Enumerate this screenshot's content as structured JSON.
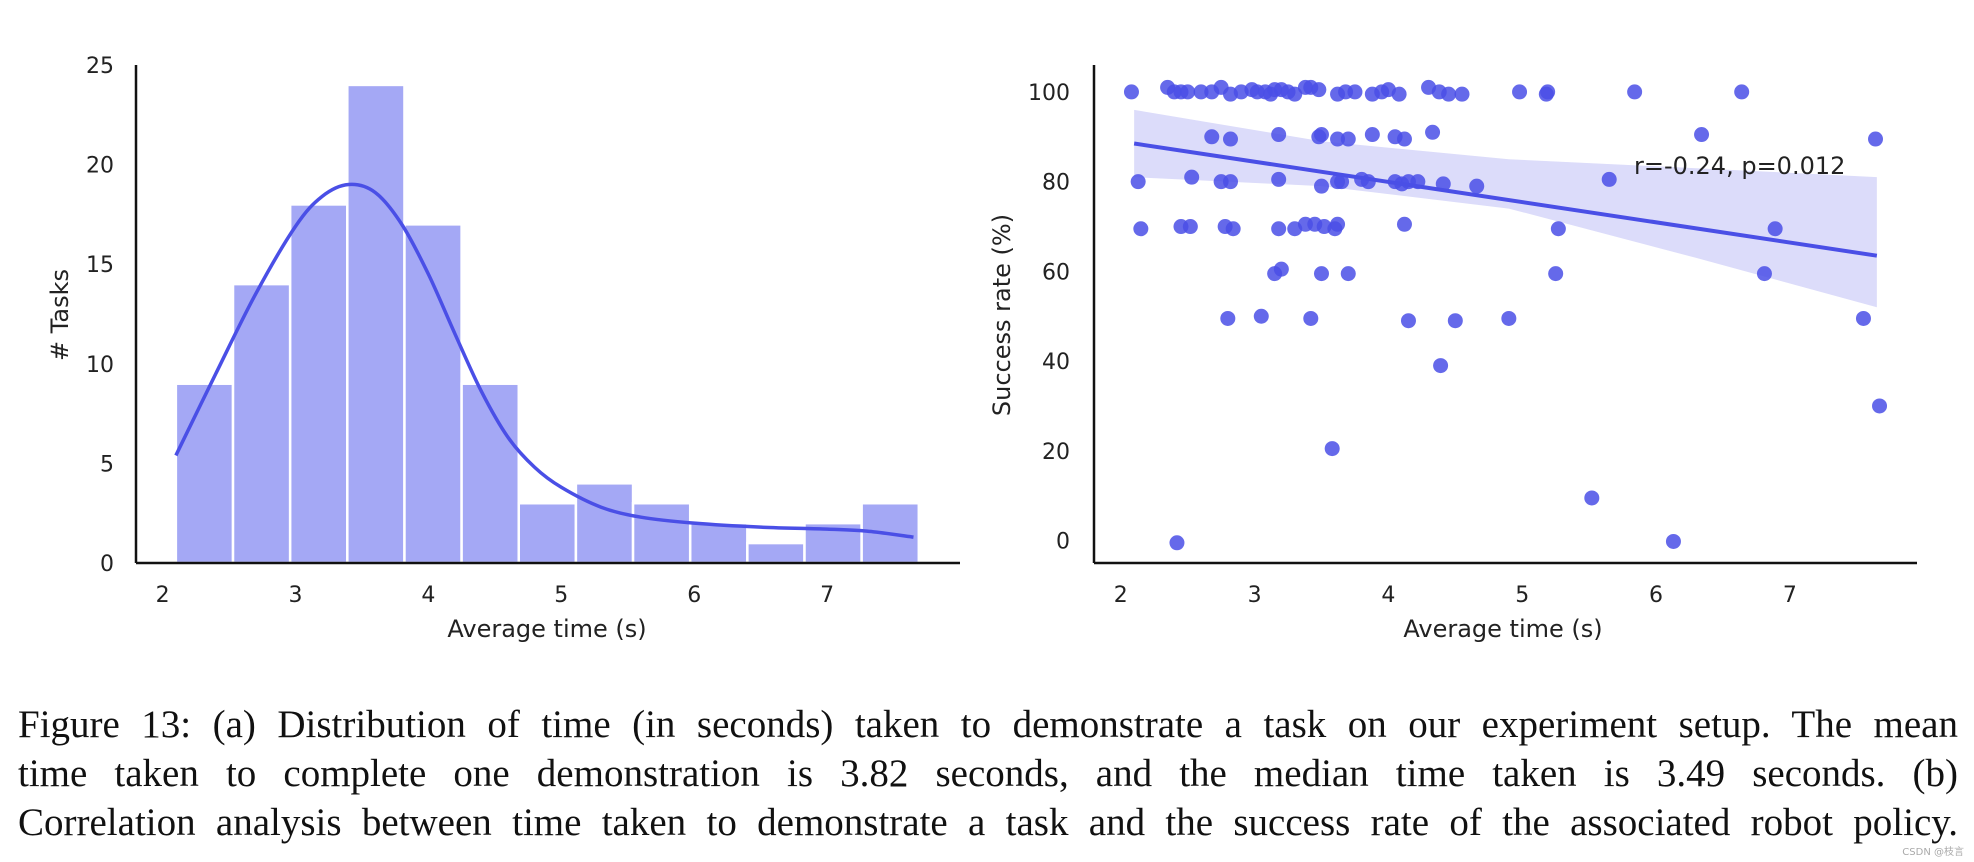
{
  "chart_data": [
    {
      "type": "bar",
      "subtype": "histogram-with-kde",
      "xlabel": "Average time (s)",
      "ylabel": "# Tasks",
      "xlim": [
        1.8,
        8.0
      ],
      "ylim": [
        0,
        25
      ],
      "xticks": [
        2,
        3,
        4,
        5,
        6,
        7
      ],
      "yticks": [
        0,
        5,
        10,
        15,
        20,
        25
      ],
      "bin_edges": [
        2.1,
        2.53,
        2.96,
        3.39,
        3.82,
        4.25,
        4.68,
        5.11,
        5.54,
        5.97,
        6.4,
        6.83,
        7.26,
        7.69
      ],
      "values": [
        9,
        14,
        18,
        24,
        17,
        9,
        3,
        4,
        3,
        2,
        1,
        2,
        3
      ],
      "bar_color": "#a4a8f5",
      "kde_color": "#4a4fe6",
      "kde": {
        "x": [
          2.1,
          2.4,
          2.7,
          3.0,
          3.2,
          3.4,
          3.6,
          3.8,
          4.0,
          4.2,
          4.4,
          4.6,
          4.8,
          5.0,
          5.3,
          5.6,
          6.0,
          6.5,
          7.0,
          7.3,
          7.65
        ],
        "y": [
          5.4,
          9.5,
          13.5,
          16.9,
          18.4,
          19.0,
          18.6,
          17.0,
          14.5,
          11.5,
          8.6,
          6.3,
          4.8,
          3.8,
          2.8,
          2.3,
          2.0,
          1.8,
          1.7,
          1.6,
          1.3
        ]
      }
    },
    {
      "type": "scatter",
      "xlabel": "Average time (s)",
      "ylabel": "Success rate (%)",
      "xlim": [
        1.8,
        7.95
      ],
      "ylim": [
        -5,
        106
      ],
      "xticks": [
        2,
        3,
        4,
        5,
        6,
        7
      ],
      "yticks": [
        0,
        20,
        40,
        60,
        80,
        100
      ],
      "point_color": "#4a4fe6",
      "regression_color": "#4a4fe6",
      "ci_color": "#dcdcfa",
      "annotation": "r=-0.24, p=0.012",
      "regression": {
        "x": [
          2.1,
          7.65
        ],
        "y": [
          88.5,
          63.5
        ]
      },
      "ci_band": {
        "x": [
          2.1,
          3.5,
          4.9,
          6.3,
          7.65
        ],
        "lower": [
          81,
          79,
          74,
          63,
          52
        ],
        "upper": [
          96,
          89,
          85,
          83,
          81
        ]
      },
      "points": [
        [
          2.08,
          100
        ],
        [
          2.35,
          101
        ],
        [
          2.4,
          100
        ],
        [
          2.45,
          100
        ],
        [
          2.5,
          100
        ],
        [
          2.6,
          100
        ],
        [
          2.68,
          100
        ],
        [
          2.75,
          101
        ],
        [
          2.82,
          99.5
        ],
        [
          2.9,
          100
        ],
        [
          2.98,
          100.5
        ],
        [
          3.02,
          100
        ],
        [
          3.08,
          100
        ],
        [
          3.12,
          99.5
        ],
        [
          3.15,
          100.5
        ],
        [
          3.2,
          100.5
        ],
        [
          3.25,
          100
        ],
        [
          3.3,
          99.5
        ],
        [
          3.38,
          101
        ],
        [
          3.42,
          101
        ],
        [
          3.48,
          100.5
        ],
        [
          3.62,
          99.5
        ],
        [
          3.68,
          100
        ],
        [
          3.75,
          100
        ],
        [
          3.88,
          99.5
        ],
        [
          3.95,
          100
        ],
        [
          4.0,
          100.5
        ],
        [
          4.08,
          99.5
        ],
        [
          4.3,
          101
        ],
        [
          4.38,
          100
        ],
        [
          4.45,
          99.5
        ],
        [
          4.55,
          99.5
        ],
        [
          4.98,
          100
        ],
        [
          5.18,
          99.5
        ],
        [
          5.19,
          100
        ],
        [
          5.84,
          100
        ],
        [
          6.64,
          100
        ],
        [
          2.68,
          90
        ],
        [
          2.82,
          89.5
        ],
        [
          3.18,
          90.5
        ],
        [
          3.48,
          90
        ],
        [
          3.5,
          90.5
        ],
        [
          3.62,
          89.5
        ],
        [
          3.7,
          89.5
        ],
        [
          3.88,
          90.5
        ],
        [
          4.05,
          90
        ],
        [
          4.12,
          89.5
        ],
        [
          4.33,
          91
        ],
        [
          6.34,
          90.5
        ],
        [
          7.64,
          89.5
        ],
        [
          2.13,
          80
        ],
        [
          2.53,
          81
        ],
        [
          2.75,
          80
        ],
        [
          2.82,
          80
        ],
        [
          3.18,
          80.5
        ],
        [
          3.5,
          79
        ],
        [
          3.62,
          80
        ],
        [
          3.65,
          80
        ],
        [
          3.8,
          80.5
        ],
        [
          3.85,
          80
        ],
        [
          4.05,
          80
        ],
        [
          4.1,
          79.5
        ],
        [
          4.15,
          80
        ],
        [
          4.22,
          80
        ],
        [
          4.41,
          79.5
        ],
        [
          4.66,
          79
        ],
        [
          5.65,
          80.5
        ],
        [
          2.15,
          69.5
        ],
        [
          2.45,
          70
        ],
        [
          2.52,
          70
        ],
        [
          2.78,
          70
        ],
        [
          2.84,
          69.5
        ],
        [
          3.18,
          69.5
        ],
        [
          3.3,
          69.5
        ],
        [
          3.38,
          70.5
        ],
        [
          3.45,
          70.5
        ],
        [
          3.52,
          70
        ],
        [
          3.6,
          69.5
        ],
        [
          3.62,
          70.5
        ],
        [
          4.12,
          70.5
        ],
        [
          5.27,
          69.5
        ],
        [
          6.89,
          69.5
        ],
        [
          3.15,
          59.5
        ],
        [
          3.2,
          60.5
        ],
        [
          3.5,
          59.5
        ],
        [
          3.7,
          59.5
        ],
        [
          5.25,
          59.5
        ],
        [
          6.81,
          59.5
        ],
        [
          2.8,
          49.5
        ],
        [
          3.05,
          50
        ],
        [
          3.42,
          49.5
        ],
        [
          4.15,
          49
        ],
        [
          4.5,
          49
        ],
        [
          4.9,
          49.5
        ],
        [
          7.55,
          49.5
        ],
        [
          4.39,
          39
        ],
        [
          3.58,
          20.5
        ],
        [
          7.67,
          30
        ],
        [
          5.52,
          9.5
        ],
        [
          2.42,
          -0.5
        ],
        [
          6.13,
          -0.2
        ]
      ]
    }
  ],
  "caption": {
    "lines": [
      "Figure 13: (a) Distribution of time (in seconds) taken to demonstrate a task on our experiment setup. The mean",
      "time taken to complete one demonstration is 3.82 seconds, and the median time taken is 3.49 seconds.  (b)",
      "Correlation analysis between time taken to demonstrate a task and the success rate of the associated robot policy."
    ]
  },
  "watermark": "CSDN @枝言"
}
